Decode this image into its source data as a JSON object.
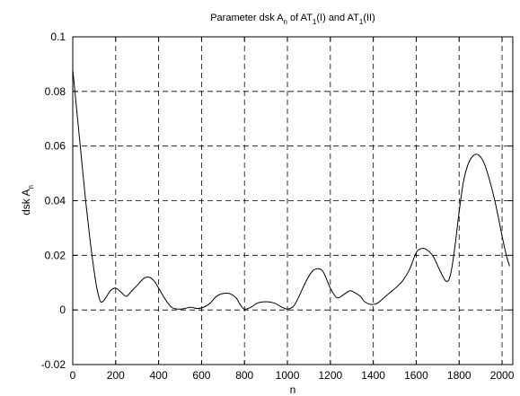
{
  "chart_data": {
    "type": "line",
    "title": {
      "prefix": "Parameter dsk A",
      "sub1": "n",
      "middle": " of AT",
      "sub2": "1",
      "middle2": "(I) and AT",
      "sub3": "1",
      "suffix": "(II)"
    },
    "xlabel": "n",
    "ylabel": {
      "main": "dsk A",
      "sub": "n"
    },
    "xlim": [
      0,
      2050
    ],
    "ylim": [
      -0.02,
      0.1
    ],
    "x_ticks": [
      0,
      200,
      400,
      600,
      800,
      1000,
      1200,
      1400,
      1600,
      1800,
      2000
    ],
    "y_ticks": [
      -0.02,
      0,
      0.02,
      0.04,
      0.06,
      0.08,
      0.1
    ],
    "y_tick_labels": [
      "-0.02",
      "0",
      "0.02",
      "0.04",
      "0.06",
      "0.08",
      "0.1"
    ],
    "grid": true,
    "series": [
      {
        "color": "#000000",
        "x": [
          0,
          20,
          40,
          60,
          80,
          100,
          115,
          130,
          150,
          175,
          200,
          225,
          250,
          275,
          300,
          330,
          355,
          380,
          400,
          430,
          460,
          490,
          520,
          550,
          580,
          610,
          640,
          670,
          700,
          730,
          760,
          780,
          800,
          830,
          860,
          900,
          940,
          970,
          1000,
          1030,
          1060,
          1090,
          1120,
          1150,
          1170,
          1200,
          1230,
          1260,
          1290,
          1310,
          1340,
          1360,
          1390,
          1420,
          1450,
          1480,
          1510,
          1540,
          1570,
          1600,
          1625,
          1650,
          1680,
          1710,
          1740,
          1760,
          1780,
          1800,
          1820,
          1840,
          1860,
          1880,
          1900,
          1920,
          1940,
          1960,
          1980,
          2000,
          2020,
          2035
        ],
        "y": [
          0.088,
          0.072,
          0.056,
          0.04,
          0.026,
          0.014,
          0.007,
          0.003,
          0.004,
          0.007,
          0.008,
          0.0065,
          0.005,
          0.007,
          0.009,
          0.0115,
          0.012,
          0.0105,
          0.008,
          0.004,
          0.001,
          0.0003,
          0.0005,
          0.001,
          0.0005,
          0.001,
          0.0025,
          0.005,
          0.006,
          0.006,
          0.0045,
          0.002,
          0.0003,
          0.001,
          0.0025,
          0.003,
          0.0025,
          0.0012,
          0.0003,
          0.0015,
          0.006,
          0.011,
          0.0145,
          0.015,
          0.0135,
          0.008,
          0.0045,
          0.0055,
          0.007,
          0.0065,
          0.005,
          0.003,
          0.002,
          0.0025,
          0.0045,
          0.0065,
          0.0085,
          0.011,
          0.015,
          0.021,
          0.0225,
          0.022,
          0.0195,
          0.0145,
          0.0105,
          0.013,
          0.023,
          0.036,
          0.047,
          0.053,
          0.056,
          0.057,
          0.056,
          0.053,
          0.048,
          0.042,
          0.035,
          0.027,
          0.02,
          0.016
        ]
      }
    ]
  }
}
